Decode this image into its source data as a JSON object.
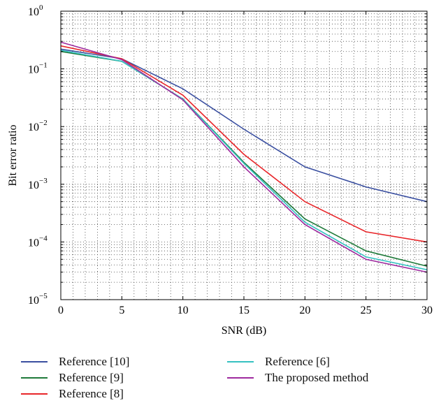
{
  "chart_data": {
    "type": "line",
    "xlabel": "SNR (dB)",
    "ylabel": "Bit error ratio",
    "x": [
      0,
      5,
      10,
      15,
      20,
      25,
      30
    ],
    "xlim": [
      0,
      30
    ],
    "ylim": [
      1e-05,
      1
    ],
    "yscale": "log",
    "grid": true,
    "legend_position": "bottom",
    "xticks": [
      "0",
      "5",
      "10",
      "15",
      "20",
      "25",
      "30"
    ],
    "yticks": [
      {
        "base": "10",
        "exp": "0",
        "value": 1
      },
      {
        "base": "10",
        "exp": "−1",
        "value": 0.1
      },
      {
        "base": "10",
        "exp": "−2",
        "value": 0.01
      },
      {
        "base": "10",
        "exp": "−3",
        "value": 0.001
      },
      {
        "base": "10",
        "exp": "−4",
        "value": 0.0001
      },
      {
        "base": "10",
        "exp": "−5",
        "value": 1e-05
      }
    ],
    "series": [
      {
        "name": "Reference [10]",
        "color": "#3a4fa0",
        "values": [
          0.22,
          0.15,
          0.045,
          0.009,
          0.002,
          0.0009,
          0.0005
        ]
      },
      {
        "name": "Reference [9]",
        "color": "#1f7a3a",
        "values": [
          0.2,
          0.135,
          0.03,
          0.0024,
          0.00025,
          7e-05,
          3.8e-05
        ]
      },
      {
        "name": "Reference [8]",
        "color": "#e8262a",
        "values": [
          0.25,
          0.15,
          0.035,
          0.0033,
          0.0005,
          0.00015,
          0.0001
        ]
      },
      {
        "name": "Reference [6]",
        "color": "#35c1c1",
        "values": [
          0.21,
          0.135,
          0.03,
          0.0023,
          0.00022,
          5.5e-05,
          3.3e-05
        ]
      },
      {
        "name": "The proposed method",
        "color": "#9e2a9e",
        "values": [
          0.29,
          0.145,
          0.029,
          0.002,
          0.0002,
          5e-05,
          3e-05
        ]
      }
    ]
  }
}
